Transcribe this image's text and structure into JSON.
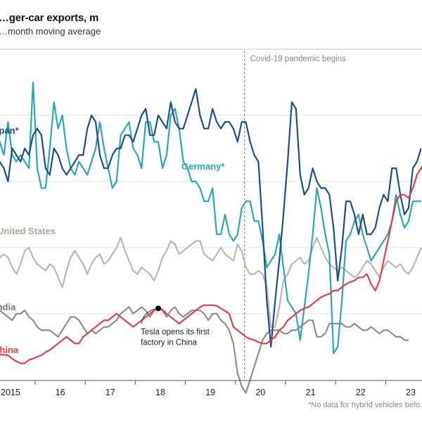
{
  "chart_data": {
    "type": "line",
    "title": "…ger-car exports, m",
    "subtitle": "…month moving average",
    "footnote": "*No data for hybrid vehicles befo…",
    "xlabel": "",
    "ylabel": "",
    "x_start": "2015-01",
    "x_step": "month",
    "x_ticks": [
      "2015",
      "16",
      "17",
      "18",
      "19",
      "20",
      "21",
      "22",
      "23"
    ],
    "ylim_estimated": [
      -0.1,
      0.4
    ],
    "grid": true,
    "y_note": "y-axis tick labels not visible (cropped); values estimated relative to horizontal gridlines",
    "annotations": [
      {
        "id": "covid",
        "text": "Covid-19 pandemic begins",
        "x": "2020-03"
      },
      {
        "id": "tesla",
        "lines": [
          "Tesla opens its first",
          "factory in China"
        ],
        "x": "2018-06",
        "series": "China"
      }
    ],
    "series": [
      {
        "name": "Japan*",
        "color": "#1f4e8c",
        "values": [
          0.19,
          0.22,
          0.21,
          0.23,
          0.22,
          0.2,
          0.25,
          0.24,
          0.23,
          0.25,
          0.24,
          0.27,
          0.28,
          0.27,
          0.22,
          0.21,
          0.25,
          0.24,
          0.22,
          0.21,
          0.22,
          0.23,
          0.24,
          0.24,
          0.28,
          0.3,
          0.29,
          0.24,
          0.22,
          0.22,
          0.24,
          0.25,
          0.25,
          0.27,
          0.27,
          0.26,
          0.28,
          0.3,
          0.31,
          0.27,
          0.27,
          0.3,
          0.29,
          0.28,
          0.32,
          0.29,
          0.28,
          0.28,
          0.3,
          0.32,
          0.34,
          0.3,
          0.28,
          0.28,
          0.31,
          0.29,
          0.28,
          0.29,
          0.29,
          0.28,
          0.26,
          0.29,
          0.29,
          0.26,
          0.24,
          0.23,
          0.13,
          0.02,
          -0.05,
          0.02,
          0.08,
          0.15,
          0.23,
          0.32,
          0.31,
          0.21,
          0.18,
          0.19,
          0.22,
          0.2,
          0.19,
          0.19,
          0.18,
          0.13,
          0.05,
          0.1,
          0.17,
          0.17,
          0.15,
          0.12,
          0.15,
          0.12,
          0.12,
          0.13,
          0.16,
          0.18,
          0.17,
          0.22,
          0.22,
          0.18,
          0.15,
          0.16,
          0.22,
          0.23,
          0.25
        ]
      },
      {
        "name": "Germany*",
        "color": "#2aa8b8",
        "values": [
          0.28,
          0.26,
          0.28,
          0.26,
          0.24,
          0.29,
          0.24,
          0.23,
          0.24,
          0.23,
          0.22,
          0.35,
          0.22,
          0.19,
          0.19,
          0.25,
          0.32,
          0.28,
          0.3,
          0.25,
          0.22,
          0.21,
          0.23,
          0.22,
          0.21,
          0.23,
          0.25,
          0.29,
          0.25,
          0.22,
          0.19,
          0.2,
          0.27,
          0.28,
          0.29,
          0.25,
          0.24,
          0.22,
          0.29,
          0.29,
          0.26,
          0.26,
          0.22,
          0.24,
          0.3,
          0.31,
          0.28,
          0.23,
          0.22,
          0.2,
          0.2,
          0.19,
          0.17,
          0.17,
          0.19,
          0.12,
          0.12,
          0.15,
          0.12,
          0.11,
          0.12,
          0.16,
          0.17,
          0.17,
          0.14,
          0.14,
          0.11,
          0.07,
          0.08,
          0.09,
          0.12,
          0.07,
          0.02,
          0.01,
          0.0,
          -0.04,
          0.01,
          0.06,
          0.12,
          0.19,
          0.16,
          0.12,
          0.09,
          -0.06,
          -0.05,
          0.02,
          0.11,
          0.12,
          0.14,
          0.15,
          0.12,
          0.1,
          0.08,
          0.09,
          0.1,
          0.11,
          0.12,
          0.14,
          0.18,
          0.15,
          0.13,
          0.14,
          0.17,
          0.17,
          0.17
        ]
      },
      {
        "name": "United States",
        "color": "#b9b9b0",
        "values": [
          0.105,
          0.1,
          0.09,
          0.085,
          0.09,
          0.085,
          0.07,
          0.06,
          0.075,
          0.095,
          0.1,
          0.085,
          0.075,
          0.07,
          0.065,
          0.075,
          0.07,
          0.055,
          0.04,
          0.065,
          0.085,
          0.095,
          0.085,
          0.075,
          0.06,
          0.075,
          0.085,
          0.09,
          0.075,
          0.08,
          0.09,
          0.1,
          0.115,
          0.095,
          0.08,
          0.065,
          0.06,
          0.07,
          0.065,
          0.06,
          0.05,
          0.065,
          0.085,
          0.095,
          0.11,
          0.105,
          0.09,
          0.095,
          0.1,
          0.105,
          0.11,
          0.11,
          0.09,
          0.085,
          0.08,
          0.09,
          0.1,
          0.09,
          0.085,
          0.08,
          0.105,
          0.095,
          0.07,
          0.06,
          0.06,
          0.065,
          0.06,
          0.04,
          -0.02,
          -0.02,
          0.01,
          0.05,
          0.06,
          0.075,
          0.08,
          0.085,
          0.075,
          0.08,
          0.1,
          0.115,
          0.1,
          0.085,
          0.075,
          0.07,
          0.065,
          0.07,
          0.065,
          0.06,
          0.055,
          0.06,
          0.07,
          0.08,
          0.075,
          0.065,
          0.055,
          0.07,
          0.08,
          0.075,
          0.07,
          0.075,
          0.065,
          0.06,
          0.07,
          0.085,
          0.1
        ]
      },
      {
        "name": "India",
        "color": "#8f8f85",
        "values": [
          0.005,
          -0.005,
          0.0,
          0.005,
          0.0,
          -0.005,
          -0.01,
          0.0,
          0.0,
          0.005,
          -0.005,
          -0.01,
          -0.02,
          -0.025,
          -0.025,
          -0.025,
          -0.03,
          -0.035,
          -0.025,
          -0.015,
          -0.005,
          -0.005,
          -0.01,
          -0.02,
          -0.03,
          -0.025,
          -0.03,
          -0.025,
          -0.02,
          -0.02,
          -0.015,
          -0.01,
          0.0,
          0.005,
          0.01,
          0.0,
          0.005,
          0.01,
          0.005,
          -0.005,
          0.005,
          0.01,
          0.005,
          -0.005,
          0.005,
          0.01,
          0.0,
          -0.005,
          0.0,
          0.005,
          0.005,
          0.005,
          0.0,
          -0.01,
          0.0,
          0.0,
          -0.01,
          -0.015,
          -0.025,
          -0.045,
          -0.09,
          -0.11,
          -0.12,
          -0.1,
          -0.08,
          -0.06,
          -0.04,
          -0.03,
          -0.025,
          -0.025,
          -0.025,
          -0.03,
          -0.03,
          -0.025,
          -0.025,
          -0.02,
          -0.015,
          -0.01,
          -0.01,
          -0.035,
          -0.035,
          -0.03,
          -0.015,
          -0.015,
          -0.015,
          -0.015,
          -0.02,
          -0.02,
          -0.015,
          -0.02,
          -0.025,
          -0.025,
          -0.02,
          -0.025,
          -0.03,
          -0.025,
          -0.025,
          -0.03,
          -0.035,
          -0.035,
          -0.04,
          -0.04
        ]
      },
      {
        "name": "China",
        "color": "#e3404a",
        "values": [
          -0.065,
          -0.065,
          -0.063,
          -0.062,
          -0.062,
          -0.063,
          -0.068,
          -0.072,
          -0.075,
          -0.075,
          -0.07,
          -0.068,
          -0.065,
          -0.063,
          -0.058,
          -0.055,
          -0.05,
          -0.045,
          -0.04,
          -0.035,
          -0.04,
          -0.045,
          -0.045,
          -0.035,
          -0.03,
          -0.025,
          -0.02,
          -0.015,
          -0.01,
          -0.01,
          -0.005,
          0.0,
          -0.005,
          -0.01,
          -0.015,
          -0.02,
          -0.015,
          -0.01,
          -0.005,
          0.0,
          0.005,
          0.008,
          0.006,
          0.0,
          -0.005,
          -0.01,
          -0.015,
          -0.01,
          -0.005,
          0.0,
          0.005,
          0.01,
          0.013,
          0.013,
          0.013,
          0.012,
          0.008,
          0.004,
          0.0,
          -0.02,
          -0.025,
          -0.03,
          -0.035,
          -0.038,
          -0.04,
          -0.043,
          -0.045,
          -0.045,
          -0.04,
          -0.035,
          -0.025,
          -0.02,
          -0.01,
          -0.005,
          0.0,
          0.005,
          0.008,
          0.01,
          0.015,
          0.02,
          0.025,
          0.028,
          0.03,
          0.035,
          0.035,
          0.04,
          0.045,
          0.048,
          0.05,
          0.055,
          0.055,
          0.06,
          0.045,
          0.035,
          0.05,
          0.08,
          0.11,
          0.14,
          0.17,
          0.18,
          0.18,
          0.175,
          0.19,
          0.21,
          0.22,
          0.23
        ]
      }
    ]
  }
}
